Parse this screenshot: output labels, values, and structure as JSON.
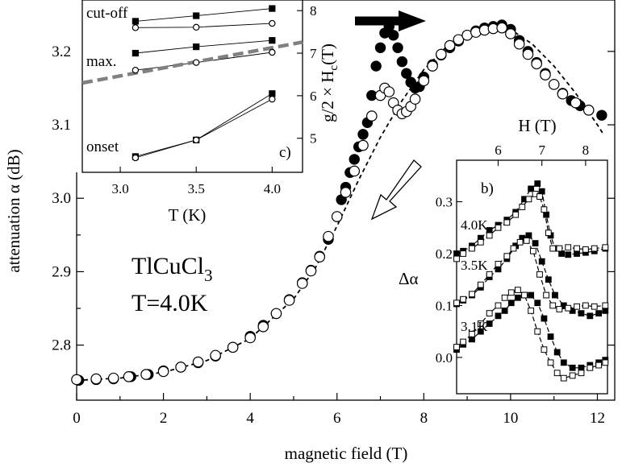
{
  "colors": {
    "filled": "#000000",
    "open": "#ffffff",
    "gray_dashed": "#808080"
  },
  "chart_data": [
    {
      "type": "scatter",
      "xlabel": "magnetic field (T)",
      "ylabel": "attenuation α (dB)",
      "xlim": [
        0,
        12.4
      ],
      "ylim": [
        2.725,
        3.27
      ],
      "xticks": [
        "0",
        "2",
        "4",
        "6",
        "8",
        "10",
        "12"
      ],
      "yticks": [
        "2.8",
        "2.9",
        "3.0",
        "3.1",
        "3.2"
      ],
      "annotations": [
        "TlCuCl",
        "3",
        "T=4.0K"
      ],
      "series": [
        {
          "marker": "filled-circle",
          "x": [
            0.05,
            0.45,
            0.85,
            1.25,
            1.65,
            2.0,
            2.4,
            2.8,
            3.2,
            3.6,
            4.0,
            4.3,
            4.6,
            4.9,
            5.2,
            5.4,
            5.6,
            5.8,
            6.0,
            6.1,
            6.2,
            6.3,
            6.4,
            6.5,
            6.6,
            6.7,
            6.8,
            6.9,
            7.0,
            7.1,
            7.2,
            7.3,
            7.4,
            7.5,
            7.6,
            7.7,
            7.8,
            7.9,
            8.0,
            8.2,
            8.4,
            8.6,
            8.8,
            9.0,
            9.2,
            9.4,
            9.6,
            9.8,
            10.0,
            10.2,
            10.4,
            10.6,
            10.8,
            11.0,
            11.2,
            11.4,
            11.6,
            11.8,
            12.1
          ],
          "y": [
            2.752,
            2.753,
            2.754,
            2.757,
            2.76,
            2.765,
            2.77,
            2.776,
            2.785,
            2.797,
            2.812,
            2.827,
            2.843,
            2.862,
            2.885,
            2.902,
            2.921,
            2.944,
            2.975,
            2.998,
            3.015,
            3.035,
            3.053,
            3.07,
            3.087,
            3.103,
            3.14,
            3.18,
            3.205,
            3.225,
            3.234,
            3.222,
            3.205,
            3.186,
            3.17,
            3.158,
            3.15,
            3.152,
            3.165,
            3.182,
            3.195,
            3.205,
            3.214,
            3.222,
            3.228,
            3.232,
            3.234,
            3.236,
            3.23,
            3.215,
            3.2,
            3.185,
            3.17,
            3.155,
            3.143,
            3.133,
            3.126,
            3.12,
            3.113
          ]
        },
        {
          "marker": "open-circle",
          "x": [
            0.0,
            0.45,
            0.85,
            1.2,
            1.6,
            2.0,
            2.4,
            2.8,
            3.2,
            3.6,
            4.0,
            4.3,
            4.6,
            4.9,
            5.2,
            5.4,
            5.6,
            5.8,
            6.0,
            6.2,
            6.4,
            6.6,
            6.8,
            7.0,
            7.1,
            7.2,
            7.3,
            7.4,
            7.5,
            7.6,
            7.7,
            7.8,
            8.0,
            8.2,
            8.4,
            8.6,
            8.8,
            9.0,
            9.2,
            9.4,
            9.6,
            9.8,
            10.0,
            10.2,
            10.4,
            10.6,
            10.8,
            11.0,
            11.2,
            11.5,
            11.8
          ],
          "y": [
            2.753,
            2.754,
            2.755,
            2.757,
            2.76,
            2.764,
            2.77,
            2.777,
            2.786,
            2.797,
            2.81,
            2.825,
            2.843,
            2.861,
            2.884,
            2.901,
            2.92,
            2.948,
            2.975,
            3.008,
            3.037,
            3.072,
            3.112,
            3.14,
            3.15,
            3.145,
            3.13,
            3.12,
            3.115,
            3.118,
            3.125,
            3.135,
            3.16,
            3.18,
            3.196,
            3.208,
            3.216,
            3.222,
            3.226,
            3.229,
            3.231,
            3.232,
            3.224,
            3.21,
            3.196,
            3.183,
            3.168,
            3.155,
            3.142,
            3.13,
            3.12
          ]
        },
        {
          "line": "dashed",
          "x": [
            0,
            1,
            2,
            3,
            4,
            5,
            5.5,
            6,
            6.5,
            7,
            7.5,
            8,
            8.5,
            9,
            9.5,
            10,
            10.5,
            11,
            11.5,
            12,
            12.15
          ],
          "y": [
            2.752,
            2.755,
            2.763,
            2.779,
            2.809,
            2.863,
            2.905,
            2.962,
            3.025,
            3.083,
            3.133,
            3.175,
            3.205,
            3.222,
            3.232,
            3.23,
            3.21,
            3.18,
            3.143,
            3.1,
            3.086
          ]
        }
      ]
    },
    {
      "type": "scatter",
      "label": "c)",
      "xlabel": "T (K)",
      "ylabel": "g/2 × H",
      "ylabel_sub": "c",
      "ylabel_unit": "(T)",
      "xlim": [
        2.75,
        4.2
      ],
      "ylim": [
        4.2,
        8.25
      ],
      "xticks": [
        "3.0",
        "3.5",
        "4.0"
      ],
      "yticks": [
        "5",
        "6",
        "7",
        "8"
      ],
      "annotations": [
        "cut-off",
        "max.",
        "onset"
      ],
      "series": [
        {
          "marker": "filled-square",
          "x": [
            3.1,
            3.5,
            4.0
          ],
          "y": [
            7.75,
            7.88,
            8.05
          ]
        },
        {
          "marker": "open-circle",
          "x": [
            3.1,
            3.5,
            4.0
          ],
          "y": [
            7.6,
            7.61,
            7.7
          ]
        },
        {
          "marker": "filled-square",
          "x": [
            3.1,
            3.5,
            4.0
          ],
          "y": [
            7.0,
            7.15,
            7.3
          ]
        },
        {
          "marker": "open-circle",
          "x": [
            3.1,
            3.5,
            4.0
          ],
          "y": [
            6.6,
            6.78,
            7.02
          ]
        },
        {
          "marker": "filled-square",
          "x": [
            3.1,
            3.5,
            4.0
          ],
          "y": [
            4.57,
            4.96,
            6.05
          ]
        },
        {
          "marker": "open-circle",
          "x": [
            3.1,
            3.5,
            4.0
          ],
          "y": [
            4.54,
            4.96,
            5.92
          ]
        },
        {
          "line": "gray-dashed",
          "x": [
            2.75,
            4.2
          ],
          "y": [
            6.3,
            7.26
          ]
        }
      ]
    },
    {
      "type": "scatter",
      "label": "b)",
      "xlabel": "H (T)",
      "ylabel": "Δα",
      "xlim": [
        5.05,
        8.5
      ],
      "ylim": [
        -0.07,
        0.38
      ],
      "xticks": [
        "6",
        "7",
        "8"
      ],
      "yticks": [
        "0.0",
        "0.1",
        "0.2",
        "0.3"
      ],
      "annotations": [
        "4.0K",
        "3.5K",
        "3.1K"
      ],
      "series": [
        {
          "marker": "filled-square",
          "x": [
            5.05,
            5.2,
            5.4,
            5.6,
            5.8,
            6.0,
            6.2,
            6.4,
            6.6,
            6.75,
            6.9,
            7.0,
            7.1,
            7.2,
            7.3,
            7.45,
            7.6,
            7.8,
            8.0,
            8.2,
            8.45
          ],
          "y": [
            0.2,
            0.205,
            0.215,
            0.23,
            0.245,
            0.255,
            0.265,
            0.28,
            0.305,
            0.325,
            0.335,
            0.32,
            0.275,
            0.235,
            0.21,
            0.2,
            0.198,
            0.2,
            0.202,
            0.205,
            0.21
          ]
        },
        {
          "marker": "open-square",
          "x": [
            5.05,
            5.2,
            5.4,
            5.6,
            5.8,
            6.0,
            6.2,
            6.4,
            6.55,
            6.7,
            6.85,
            6.95,
            7.05,
            7.15,
            7.25,
            7.4,
            7.6,
            7.8,
            8.0,
            8.2,
            8.45
          ],
          "y": [
            0.19,
            0.2,
            0.21,
            0.222,
            0.235,
            0.25,
            0.26,
            0.275,
            0.29,
            0.305,
            0.315,
            0.31,
            0.285,
            0.24,
            0.21,
            0.21,
            0.212,
            0.21,
            0.208,
            0.21,
            0.212
          ]
        },
        {
          "marker": "filled-square",
          "x": [
            5.05,
            5.2,
            5.4,
            5.6,
            5.8,
            6.0,
            6.2,
            6.4,
            6.55,
            6.7,
            6.85,
            7.0,
            7.15,
            7.3,
            7.5,
            7.7,
            7.9,
            8.1,
            8.3,
            8.45
          ],
          "y": [
            0.103,
            0.11,
            0.12,
            0.135,
            0.155,
            0.17,
            0.19,
            0.215,
            0.23,
            0.235,
            0.22,
            0.185,
            0.15,
            0.12,
            0.1,
            0.09,
            0.085,
            0.08,
            0.085,
            0.09
          ]
        },
        {
          "marker": "open-square",
          "x": [
            5.05,
            5.2,
            5.4,
            5.6,
            5.8,
            6.0,
            6.2,
            6.35,
            6.5,
            6.65,
            6.8,
            6.95,
            7.1,
            7.25,
            7.4,
            7.6,
            7.8,
            8.0,
            8.2,
            8.45
          ],
          "y": [
            0.105,
            0.112,
            0.122,
            0.14,
            0.16,
            0.18,
            0.195,
            0.21,
            0.222,
            0.225,
            0.205,
            0.16,
            0.12,
            0.1,
            0.093,
            0.095,
            0.098,
            0.1,
            0.098,
            0.1
          ]
        },
        {
          "marker": "filled-square",
          "x": [
            5.05,
            5.2,
            5.4,
            5.6,
            5.8,
            6.0,
            6.15,
            6.3,
            6.45,
            6.6,
            6.75,
            6.9,
            7.05,
            7.2,
            7.35,
            7.5,
            7.7,
            7.9,
            8.1,
            8.3,
            8.45
          ],
          "y": [
            0.015,
            0.025,
            0.035,
            0.05,
            0.065,
            0.08,
            0.09,
            0.105,
            0.115,
            0.12,
            0.12,
            0.105,
            0.075,
            0.04,
            0.01,
            -0.01,
            -0.02,
            -0.02,
            -0.015,
            -0.01,
            -0.005
          ]
        },
        {
          "marker": "open-square",
          "x": [
            5.05,
            5.2,
            5.4,
            5.6,
            5.8,
            6.0,
            6.15,
            6.3,
            6.45,
            6.6,
            6.75,
            6.9,
            7.05,
            7.2,
            7.35,
            7.5,
            7.7,
            7.9,
            8.1,
            8.3,
            8.45
          ],
          "y": [
            0.02,
            0.03,
            0.045,
            0.065,
            0.085,
            0.1,
            0.115,
            0.125,
            0.13,
            0.12,
            0.09,
            0.05,
            0.015,
            -0.01,
            -0.03,
            -0.04,
            -0.035,
            -0.03,
            -0.02,
            -0.015,
            -0.01
          ]
        }
      ]
    }
  ]
}
